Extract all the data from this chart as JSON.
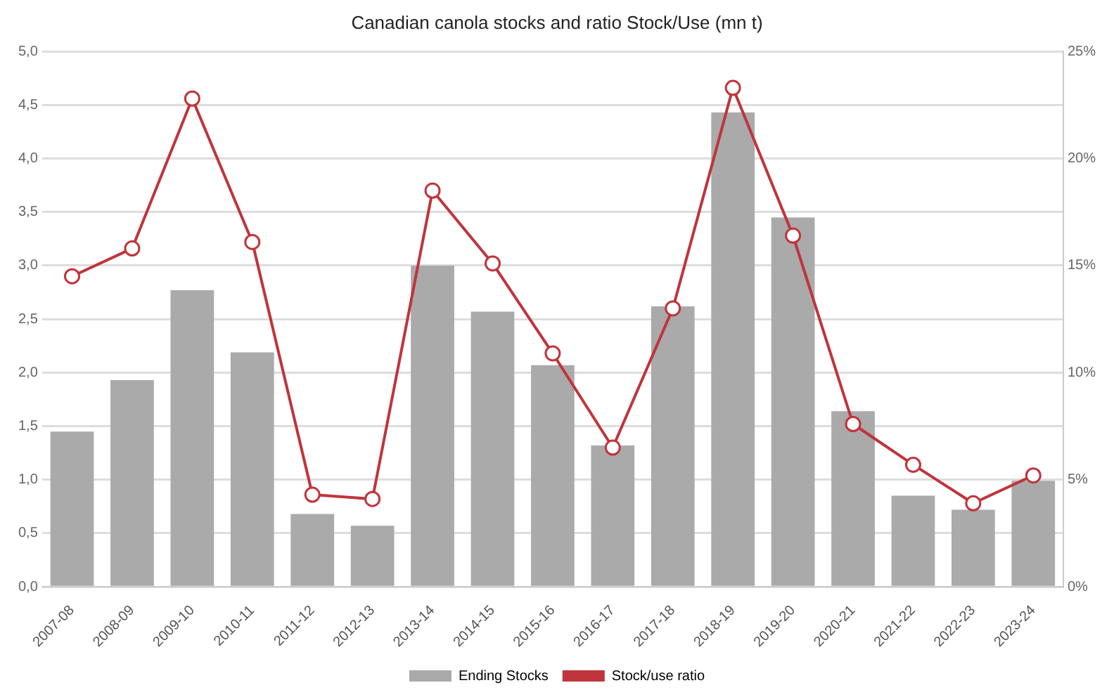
{
  "chart_data": {
    "type": "bar",
    "title": "Canadian canola stocks and ratio Stock/Use (mn t)",
    "categories": [
      "2007-08",
      "2008-09",
      "2009-10",
      "2010-11",
      "2011-12",
      "2012-13",
      "2013-14",
      "2014-15",
      "2015-16",
      "2016-17",
      "2017-18",
      "2018-19",
      "2019-20",
      "2020-21",
      "2021-22",
      "2022-23",
      "2023-24"
    ],
    "series": [
      {
        "name": "Ending Stocks",
        "color": "#aaaaaa",
        "values": [
          1.45,
          1.93,
          2.77,
          2.19,
          0.68,
          0.57,
          3.0,
          2.57,
          2.07,
          1.32,
          2.62,
          4.43,
          3.45,
          1.64,
          0.85,
          0.72,
          0.99
        ]
      },
      {
        "name": "Stock/use ratio",
        "type": "line",
        "axis": "y2",
        "color": "#c0343c",
        "marker": "circle",
        "values": [
          14.5,
          15.8,
          22.8,
          16.1,
          4.3,
          4.1,
          18.5,
          15.1,
          10.9,
          6.5,
          13.0,
          23.3,
          16.4,
          7.6,
          5.7,
          3.9,
          5.2
        ]
      }
    ],
    "ylim": [
      0,
      5
    ],
    "yticks": [
      {
        "value": 0,
        "label": "0,0"
      },
      {
        "value": 0.5,
        "label": "0,5"
      },
      {
        "value": 1,
        "label": "1,0"
      },
      {
        "value": 1.5,
        "label": "1,5"
      },
      {
        "value": 2,
        "label": "2,0"
      },
      {
        "value": 2.5,
        "label": "2,5"
      },
      {
        "value": 3,
        "label": "3,0"
      },
      {
        "value": 3.5,
        "label": "3,5"
      },
      {
        "value": 4,
        "label": "4,0"
      },
      {
        "value": 4.5,
        "label": "4,5"
      },
      {
        "value": 5,
        "label": "5,0"
      }
    ],
    "y2lim": [
      0,
      25
    ],
    "y2ticks": [
      {
        "value": 0,
        "label": "0%"
      },
      {
        "value": 5,
        "label": "5%"
      },
      {
        "value": 10,
        "label": "10%"
      },
      {
        "value": 15,
        "label": "15%"
      },
      {
        "value": 20,
        "label": "20%"
      },
      {
        "value": 25,
        "label": "25%"
      }
    ],
    "grid": "y",
    "legend": "bottom"
  }
}
